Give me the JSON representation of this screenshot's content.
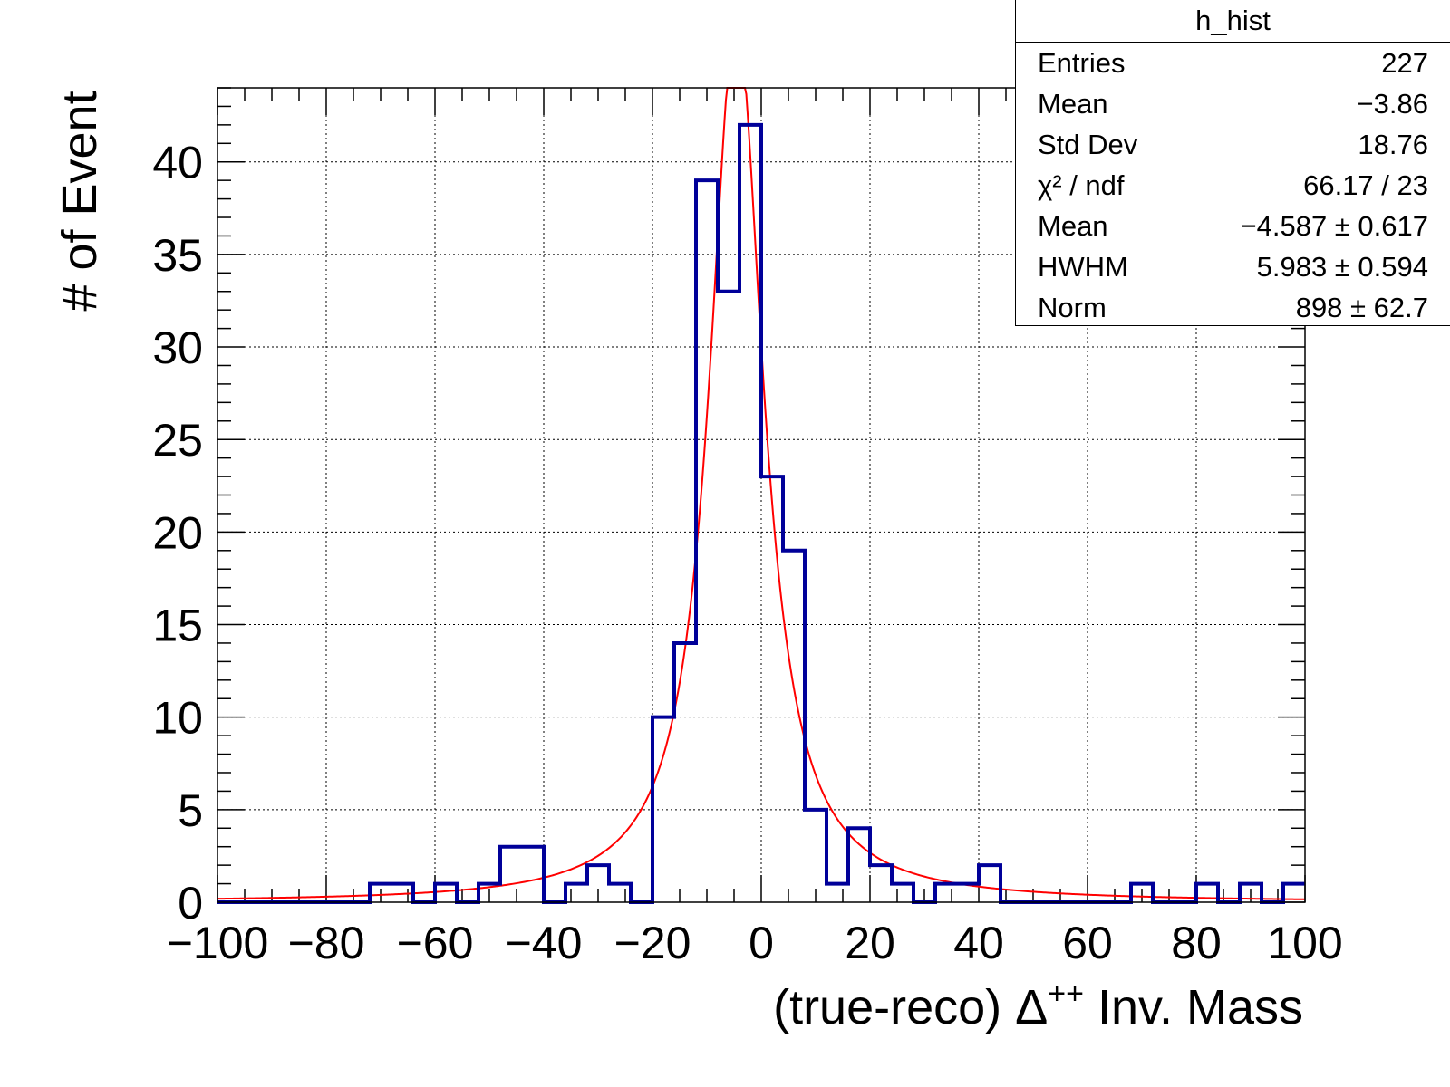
{
  "chart_data": {
    "type": "histogram",
    "xlabel_prefix": "(true-reco) ",
    "xlabel_symbol": "Δ",
    "xlabel_sup": "++",
    "xlabel_suffix": " Inv. Mass",
    "ylabel": "# of Event",
    "xlim": [
      -100,
      100
    ],
    "ylim": [
      0,
      44
    ],
    "grid": true,
    "x_ticks": [
      -100,
      -80,
      -60,
      -40,
      -20,
      0,
      20,
      40,
      60,
      80,
      100
    ],
    "y_ticks": [
      0,
      5,
      10,
      15,
      20,
      25,
      30,
      35,
      40
    ],
    "x_tick_labels": [
      "−100",
      "−80",
      "−60",
      "−40",
      "−20",
      "0",
      "20",
      "40",
      "60",
      "80",
      "100"
    ],
    "y_tick_labels": [
      "0",
      "5",
      "10",
      "15",
      "20",
      "25",
      "30",
      "35",
      "40"
    ],
    "bin_width": 4,
    "bin_edges_start": -100,
    "histogram": {
      "name": "h_hist",
      "color": "#000099",
      "counts": [
        0,
        0,
        0,
        0,
        0,
        0,
        0,
        1,
        1,
        0,
        1,
        0,
        1,
        3,
        3,
        0,
        1,
        2,
        1,
        0,
        10,
        14,
        39,
        33,
        42,
        23,
        19,
        5,
        1,
        4,
        2,
        1,
        0,
        1,
        1,
        2,
        0,
        0,
        0,
        0,
        0,
        0,
        1,
        0,
        0,
        1,
        0,
        1,
        0,
        1
      ]
    },
    "fit": {
      "type": "lorentzian",
      "color": "#ff0000",
      "mean": -4.587,
      "hwhm": 5.983,
      "norm": 898
    }
  },
  "stats_box": {
    "title": "h_hist",
    "rows": [
      {
        "label": "Entries",
        "value": "227"
      },
      {
        "label": "Mean",
        "value": "−3.86"
      },
      {
        "label": "Std Dev",
        "value": "18.76"
      },
      {
        "label": "χ² / ndf",
        "value": "66.17 / 23"
      },
      {
        "label": "Mean",
        "value": "−4.587 ± 0.617"
      },
      {
        "label": "HWHM",
        "value": "5.983 ± 0.594"
      },
      {
        "label": "Norm",
        "value": "898 ± 62.7"
      }
    ]
  }
}
